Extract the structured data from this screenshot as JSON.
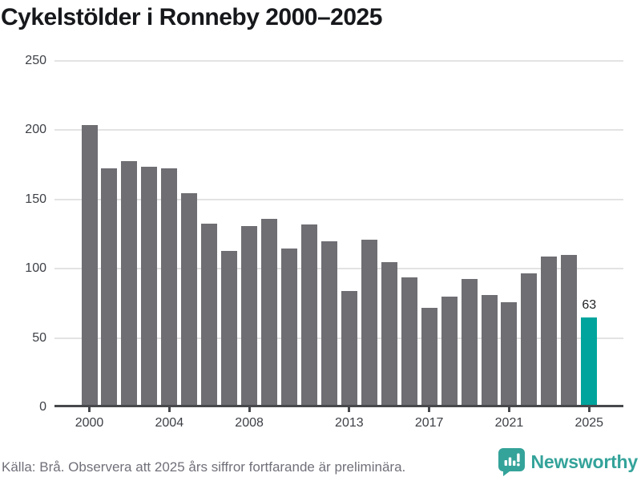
{
  "title": "Cykelstölder i Ronneby 2000–2025",
  "chart_data": {
    "type": "bar",
    "title": "Cykelstölder i Ronneby 2000–2025",
    "x": [
      2000,
      2001,
      2002,
      2003,
      2004,
      2005,
      2006,
      2007,
      2008,
      2009,
      2010,
      2011,
      2012,
      2013,
      2014,
      2015,
      2016,
      2017,
      2018,
      2019,
      2020,
      2021,
      2022,
      2023,
      2024,
      2025
    ],
    "values": [
      202,
      171,
      176,
      172,
      171,
      153,
      131,
      111,
      129,
      134,
      113,
      130,
      118,
      82,
      119,
      103,
      92,
      70,
      78,
      91,
      79,
      74,
      95,
      107,
      108,
      63
    ],
    "highlight_x": 2025,
    "highlight_value_label": "63",
    "xticks": [
      2000,
      2004,
      2008,
      2013,
      2017,
      2021,
      2025
    ],
    "yticks": [
      0,
      50,
      100,
      150,
      200,
      250
    ],
    "ylim": [
      0,
      250
    ],
    "xlabel": "",
    "ylabel": "",
    "grid": true,
    "legend_position": "none",
    "bar_color": "#6e6e73",
    "highlight_color": "#00a49c"
  },
  "footer": {
    "source_note": "Källa: Brå. Observera att 2025 års siffror fortfarande är preliminära.",
    "brand_name": "Newsworthy"
  },
  "colors": {
    "title_text": "#16181b",
    "axis_line": "#46484c",
    "grid_line": "#e3e3e3",
    "tick_text": "#3d4046",
    "footer_text": "#70707a",
    "brand_teal": "#34a39a"
  }
}
